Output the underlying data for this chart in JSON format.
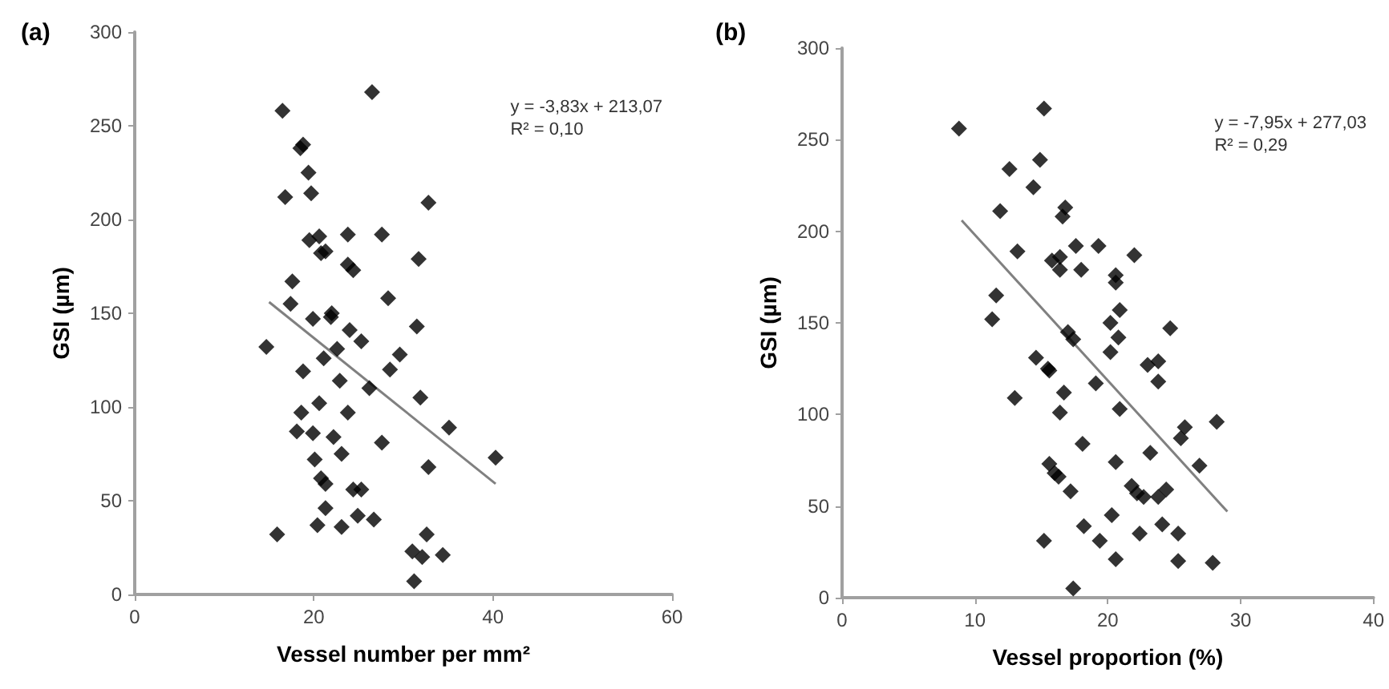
{
  "chart_data": [
    {
      "type": "scatter",
      "title": "(a)",
      "xlabel": "Vessel number per mm²",
      "ylabel": "GSI (µm)",
      "xlim": [
        0,
        60
      ],
      "xticks": [
        0,
        20,
        40,
        60
      ],
      "ylim": [
        0,
        300
      ],
      "yticks": [
        0,
        50,
        100,
        150,
        200,
        250,
        300
      ],
      "grid": false,
      "marker": "diamond",
      "annotations": [
        "y = -3,83x + 213,07",
        "R² = 0,10"
      ],
      "series": [
        {
          "type": "scatter",
          "color": "#000000",
          "x": [
            16.5,
            18.5,
            18.8,
            19.4,
            16.8,
            19.7,
            19.5,
            20.6,
            20.8,
            21.3,
            23.8,
            23.8,
            24.4,
            17.6,
            17.4,
            27.6,
            26.5,
            32.8,
            31.7,
            28.3,
            31.5,
            29.6,
            28.5,
            31.9,
            35.1,
            40.3,
            27.6,
            32.8,
            32.6,
            31,
            32.1,
            34.4,
            31.2,
            14.7,
            19.9,
            22,
            21.9,
            24,
            25.3,
            22.6,
            21.1,
            18.8,
            22.9,
            26.2,
            20.6,
            18.6,
            18.1,
            19.9,
            22.2,
            23.8,
            23.1,
            20.1,
            20.8,
            21.3,
            24.4,
            25.3,
            21.3,
            20.4,
            23.1,
            24.9,
            26.7,
            15.9
          ],
          "values": [
            258,
            238,
            240,
            225,
            212,
            214,
            189,
            191,
            182,
            183,
            192,
            176,
            173,
            167,
            155,
            192,
            268,
            209,
            179,
            158,
            143,
            128,
            120,
            105,
            89,
            73,
            81,
            68,
            32,
            23,
            20,
            21,
            7,
            132,
            147,
            150,
            148,
            141,
            135,
            131,
            126,
            119,
            114,
            110,
            102,
            97,
            87,
            86,
            84,
            97,
            75,
            72,
            62,
            59,
            56,
            56,
            46,
            37,
            36,
            42,
            40,
            32
          ]
        },
        {
          "type": "line",
          "color": "#808080",
          "line_style": "solid",
          "marker": "none",
          "x": [
            15,
            40.3
          ],
          "values": [
            156,
            59
          ]
        }
      ]
    },
    {
      "type": "scatter",
      "title": "(b)",
      "xlabel": "Vessel proportion (%)",
      "ylabel": "GSI (µm)",
      "xlim": [
        0,
        40
      ],
      "xticks": [
        0,
        10,
        20,
        30,
        40
      ],
      "ylim": [
        0,
        300
      ],
      "yticks": [
        0,
        50,
        100,
        150,
        200,
        250,
        300
      ],
      "grid": false,
      "marker": "diamond",
      "annotations": [
        "y = -7,95x + 277,03",
        "R² = 0,29"
      ],
      "series": [
        {
          "type": "scatter",
          "color": "#000000",
          "x": [
            8.8,
            15.2,
            12.6,
            14.9,
            14.4,
            11.9,
            13.2,
            11.6,
            11.3,
            13,
            14.6,
            15.6,
            15.2,
            16.8,
            16.6,
            15.8,
            16.4,
            16.4,
            17.6,
            18,
            19.3,
            22,
            20.6,
            20.6,
            20.9,
            20.2,
            20.8,
            20.2,
            17,
            17.4,
            24.7,
            23,
            23.8,
            23.8,
            15.5,
            16.7,
            19.1,
            16.4,
            20.9,
            25.8,
            25.5,
            28.2,
            18.1,
            23.2,
            26.9,
            20.6,
            15.6,
            16,
            16.3,
            17.2,
            21.8,
            22.2,
            22.7,
            23.8,
            24.4,
            20.3,
            18.2,
            19.4,
            22.4,
            24.1,
            25.3,
            20.6,
            25.3,
            27.9,
            17.4
          ],
          "values": [
            256,
            267,
            234,
            239,
            224,
            211,
            189,
            165,
            152,
            109,
            131,
            124,
            31,
            213,
            208,
            184,
            186,
            179,
            192,
            179,
            192,
            187,
            176,
            172,
            157,
            150,
            142,
            134,
            145,
            141,
            147,
            127,
            129,
            118,
            125,
            112,
            117,
            101,
            103,
            93,
            87,
            96,
            84,
            79,
            72,
            74,
            73,
            68,
            66,
            58,
            61,
            57,
            55,
            55,
            59,
            45,
            39,
            31,
            35,
            40,
            35,
            21,
            20,
            19,
            5
          ]
        },
        {
          "type": "line",
          "color": "#808080",
          "line_style": "solid",
          "marker": "none",
          "x": [
            9,
            29
          ],
          "values": [
            206,
            47
          ]
        }
      ]
    }
  ]
}
